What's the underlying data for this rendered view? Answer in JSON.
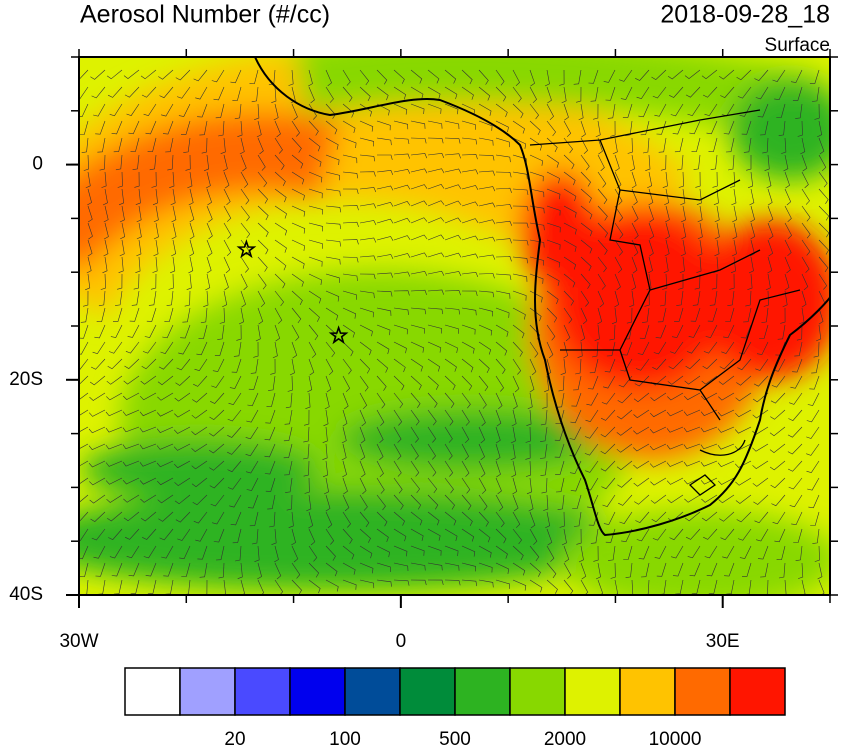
{
  "header": {
    "title": "Aerosol Number (#/cc)",
    "time": "2018-09-28_18",
    "level": "Surface"
  },
  "map": {
    "lon_range": [
      -30,
      40
    ],
    "lat_range": [
      -40,
      10
    ],
    "lon_ticks": [
      {
        "value": -30,
        "label": "30W"
      },
      0,
      {
        "value": 30,
        "label": "30E"
      }
    ],
    "lat_ticks": [
      0,
      {
        "value": -20,
        "label": "20S"
      },
      {
        "value": -40,
        "label": "40S"
      }
    ],
    "stars": [
      {
        "lon": -14.4,
        "lat": -7.9
      },
      {
        "lon": -5.8,
        "lat": -15.9
      }
    ]
  },
  "colorbar": {
    "colors": [
      "#ffffff",
      "#a0a0ff",
      "#4a4aff",
      "#0000ee",
      "#004c99",
      "#008c3a",
      "#2db321",
      "#88d800",
      "#def200",
      "#ffc300",
      "#ff6a00",
      "#ff1500"
    ],
    "labels": [
      20,
      100,
      500,
      2000,
      10000
    ]
  }
}
